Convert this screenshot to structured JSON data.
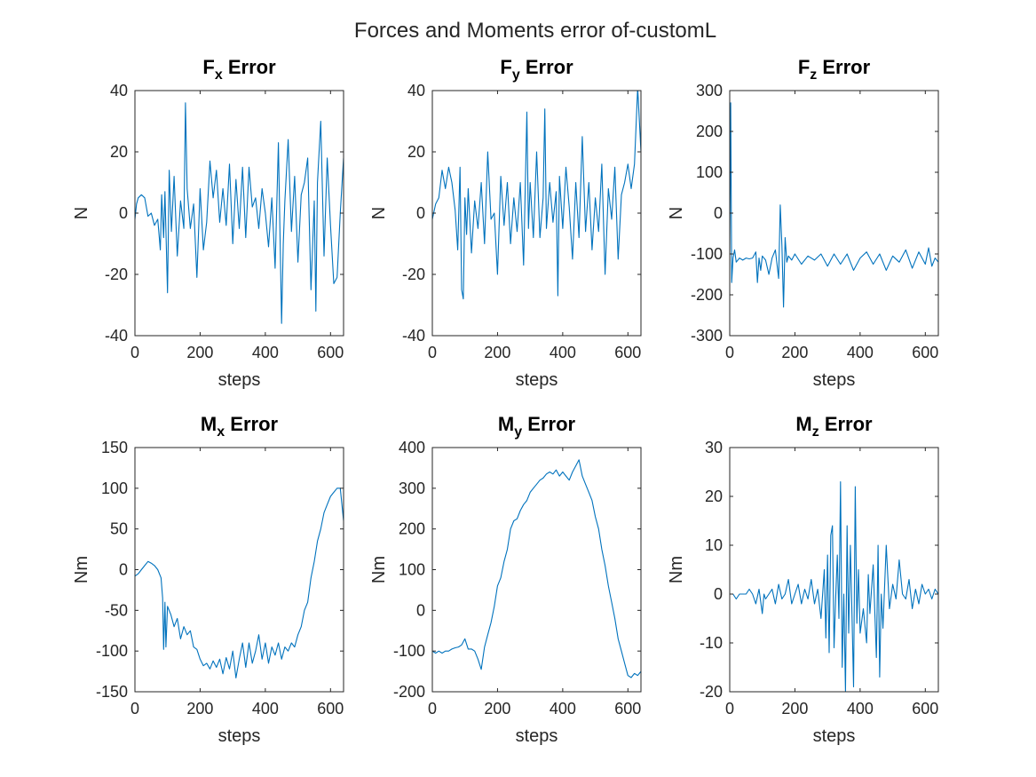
{
  "figure": {
    "title": "Forces and Moments error of-customL"
  },
  "style": {
    "line_color": "#0072BD",
    "axis_color": "#262626",
    "background": "#ffffff"
  },
  "chart_data": [
    {
      "type": "line",
      "title_main": "F",
      "title_sub": "x",
      "title_rest": " Error",
      "xlabel": "steps",
      "ylabel": "N",
      "xlim": [
        0,
        640
      ],
      "ylim": [
        -40,
        40
      ],
      "xticks": [
        0,
        200,
        400,
        600
      ],
      "yticks": [
        -40,
        -20,
        0,
        20,
        40
      ],
      "grid": false,
      "series": [
        {
          "x": [
            0,
            5,
            10,
            20,
            30,
            40,
            50,
            60,
            70,
            78,
            82,
            88,
            92,
            100,
            105,
            112,
            120,
            130,
            140,
            150,
            155,
            160,
            170,
            180,
            190,
            200,
            210,
            220,
            230,
            240,
            250,
            260,
            270,
            280,
            290,
            300,
            310,
            320,
            330,
            340,
            350,
            360,
            370,
            380,
            390,
            400,
            410,
            420,
            430,
            440,
            450,
            455,
            460,
            470,
            480,
            490,
            500,
            510,
            520,
            530,
            540,
            550,
            555,
            560,
            570,
            580,
            590,
            600,
            610,
            620,
            630,
            640
          ],
          "y": [
            -2,
            3,
            5,
            6,
            5,
            -1,
            0,
            -4,
            -2,
            -12,
            6,
            -8,
            7,
            -26,
            14,
            -6,
            12,
            -14,
            4,
            -5,
            36,
            8,
            -5,
            3,
            -21,
            8,
            -12,
            -3,
            17,
            5,
            14,
            -3,
            8,
            -4,
            16,
            -10,
            11,
            -5,
            15,
            -8,
            15,
            2,
            5,
            -5,
            8,
            0,
            -11,
            5,
            -18,
            23,
            -36,
            -10,
            4,
            24,
            -6,
            12,
            -16,
            6,
            10,
            18,
            -25,
            4,
            -32,
            10,
            30,
            -14,
            18,
            -4,
            -23,
            -21,
            0,
            18
          ]
        }
      ]
    },
    {
      "type": "line",
      "title_main": "F",
      "title_sub": "y",
      "title_rest": " Error",
      "xlabel": "steps",
      "ylabel": "N",
      "xlim": [
        0,
        640
      ],
      "ylim": [
        -40,
        40
      ],
      "xticks": [
        0,
        200,
        400,
        600
      ],
      "yticks": [
        -40,
        -20,
        0,
        20,
        40
      ],
      "grid": false,
      "series": [
        {
          "x": [
            0,
            10,
            20,
            30,
            40,
            50,
            60,
            70,
            78,
            85,
            90,
            95,
            100,
            105,
            110,
            120,
            130,
            140,
            150,
            160,
            170,
            180,
            190,
            200,
            210,
            220,
            230,
            240,
            250,
            260,
            270,
            280,
            290,
            295,
            300,
            310,
            320,
            330,
            340,
            345,
            350,
            360,
            370,
            380,
            385,
            390,
            400,
            410,
            420,
            430,
            440,
            450,
            460,
            470,
            480,
            490,
            500,
            510,
            520,
            530,
            540,
            550,
            560,
            570,
            580,
            590,
            600,
            610,
            620,
            630,
            640
          ],
          "y": [
            -2,
            3,
            5,
            14,
            8,
            15,
            10,
            1,
            -12,
            15,
            -25,
            -28,
            5,
            -7,
            8,
            -13,
            4,
            -5,
            10,
            -10,
            20,
            -2,
            0,
            -20,
            12,
            -4,
            10,
            -10,
            5,
            -6,
            10,
            -17,
            33,
            -5,
            10,
            -8,
            20,
            -8,
            5,
            34,
            -5,
            10,
            -3,
            7,
            -27,
            12,
            -5,
            15,
            2,
            -15,
            10,
            -8,
            25,
            -6,
            10,
            -12,
            5,
            -6,
            16,
            -20,
            8,
            -2,
            15,
            -15,
            6,
            10,
            16,
            8,
            16,
            41,
            20
          ]
        }
      ]
    },
    {
      "type": "line",
      "title_main": "F",
      "title_sub": "z",
      "title_rest": " Error",
      "xlabel": "steps",
      "ylabel": "N",
      "xlim": [
        0,
        640
      ],
      "ylim": [
        -300,
        300
      ],
      "xticks": [
        0,
        200,
        400,
        600
      ],
      "yticks": [
        -300,
        -200,
        -100,
        0,
        100,
        200,
        300
      ],
      "grid": false,
      "series": [
        {
          "x": [
            0,
            3,
            6,
            10,
            15,
            20,
            30,
            40,
            50,
            60,
            70,
            80,
            85,
            90,
            95,
            100,
            110,
            120,
            130,
            140,
            150,
            155,
            160,
            165,
            170,
            175,
            180,
            190,
            200,
            220,
            240,
            260,
            280,
            300,
            320,
            340,
            360,
            380,
            400,
            420,
            440,
            460,
            480,
            500,
            520,
            540,
            560,
            580,
            600,
            610,
            620,
            630,
            640
          ],
          "y": [
            -100,
            270,
            -170,
            -110,
            -90,
            -120,
            -110,
            -115,
            -110,
            -112,
            -110,
            -95,
            -170,
            -110,
            -140,
            -105,
            -115,
            -150,
            -110,
            -90,
            -160,
            20,
            -80,
            -230,
            -60,
            -120,
            -105,
            -115,
            -100,
            -125,
            -105,
            -115,
            -100,
            -130,
            -100,
            -125,
            -100,
            -140,
            -110,
            -95,
            -125,
            -100,
            -140,
            -105,
            -120,
            -90,
            -135,
            -95,
            -125,
            -85,
            -130,
            -110,
            -120
          ]
        }
      ]
    },
    {
      "type": "line",
      "title_main": "M",
      "title_sub": "x",
      "title_rest": " Error",
      "xlabel": "steps",
      "ylabel": "Nm",
      "xlim": [
        0,
        640
      ],
      "ylim": [
        -150,
        150
      ],
      "xticks": [
        0,
        200,
        400,
        600
      ],
      "yticks": [
        -150,
        -100,
        -50,
        0,
        50,
        100,
        150
      ],
      "grid": false,
      "series": [
        {
          "x": [
            0,
            10,
            20,
            30,
            40,
            50,
            60,
            70,
            80,
            85,
            88,
            92,
            95,
            100,
            110,
            120,
            130,
            140,
            150,
            160,
            170,
            180,
            190,
            200,
            210,
            220,
            230,
            240,
            250,
            260,
            270,
            280,
            290,
            300,
            310,
            320,
            330,
            340,
            350,
            360,
            370,
            380,
            390,
            400,
            410,
            420,
            430,
            440,
            450,
            460,
            470,
            480,
            490,
            500,
            510,
            520,
            530,
            540,
            550,
            560,
            570,
            580,
            590,
            600,
            610,
            620,
            630,
            640
          ],
          "y": [
            -8,
            -5,
            0,
            5,
            10,
            8,
            5,
            0,
            -10,
            -35,
            -98,
            -40,
            -95,
            -45,
            -55,
            -70,
            -60,
            -85,
            -70,
            -80,
            -75,
            -95,
            -98,
            -110,
            -118,
            -115,
            -122,
            -112,
            -120,
            -110,
            -128,
            -108,
            -122,
            -100,
            -133,
            -110,
            -90,
            -120,
            -90,
            -115,
            -100,
            -80,
            -110,
            -90,
            -115,
            -95,
            -105,
            -90,
            -110,
            -95,
            -100,
            -90,
            -95,
            -80,
            -70,
            -50,
            -40,
            -10,
            10,
            35,
            50,
            70,
            80,
            90,
            95,
            100,
            100,
            60
          ]
        }
      ]
    },
    {
      "type": "line",
      "title_main": "M",
      "title_sub": "y",
      "title_rest": " Error",
      "xlabel": "steps",
      "ylabel": "Nm",
      "xlim": [
        0,
        640
      ],
      "ylim": [
        -200,
        400
      ],
      "xticks": [
        0,
        200,
        400,
        600
      ],
      "yticks": [
        -200,
        -100,
        0,
        100,
        200,
        300,
        400
      ],
      "grid": false,
      "series": [
        {
          "x": [
            0,
            10,
            20,
            30,
            40,
            50,
            60,
            70,
            80,
            90,
            100,
            110,
            120,
            130,
            140,
            150,
            160,
            170,
            180,
            190,
            200,
            210,
            220,
            230,
            240,
            250,
            260,
            270,
            280,
            290,
            300,
            310,
            320,
            330,
            340,
            350,
            360,
            370,
            380,
            390,
            400,
            410,
            420,
            430,
            440,
            450,
            460,
            470,
            480,
            490,
            500,
            510,
            520,
            530,
            540,
            550,
            560,
            570,
            580,
            590,
            600,
            610,
            620,
            630,
            640
          ],
          "y": [
            -100,
            -105,
            -100,
            -105,
            -100,
            -100,
            -95,
            -92,
            -90,
            -85,
            -70,
            -95,
            -95,
            -100,
            -120,
            -145,
            -90,
            -60,
            -30,
            10,
            60,
            80,
            120,
            150,
            200,
            220,
            225,
            245,
            260,
            270,
            290,
            300,
            310,
            320,
            325,
            335,
            340,
            335,
            345,
            330,
            340,
            330,
            320,
            340,
            355,
            370,
            330,
            310,
            290,
            270,
            230,
            200,
            150,
            110,
            60,
            20,
            -20,
            -70,
            -100,
            -130,
            -160,
            -165,
            -155,
            -160,
            -150
          ]
        }
      ]
    },
    {
      "type": "line",
      "title_main": "M",
      "title_sub": "z",
      "title_rest": " Error",
      "xlabel": "steps",
      "ylabel": "Nm",
      "xlim": [
        0,
        640
      ],
      "ylim": [
        -20,
        30
      ],
      "xticks": [
        0,
        200,
        400,
        600
      ],
      "yticks": [
        -20,
        -10,
        0,
        10,
        20,
        30
      ],
      "grid": false,
      "series": [
        {
          "x": [
            0,
            10,
            20,
            30,
            40,
            50,
            60,
            70,
            80,
            90,
            100,
            105,
            110,
            120,
            130,
            140,
            150,
            160,
            170,
            180,
            190,
            200,
            210,
            220,
            230,
            240,
            250,
            260,
            270,
            280,
            290,
            295,
            300,
            305,
            310,
            315,
            320,
            325,
            330,
            335,
            340,
            345,
            350,
            355,
            360,
            365,
            370,
            375,
            380,
            385,
            390,
            395,
            400,
            410,
            420,
            425,
            430,
            440,
            450,
            455,
            460,
            465,
            470,
            480,
            490,
            500,
            510,
            520,
            530,
            540,
            550,
            560,
            570,
            580,
            590,
            600,
            610,
            620,
            630,
            640
          ],
          "y": [
            0,
            0,
            -1,
            0,
            0,
            0,
            1,
            0,
            -2,
            1,
            -4,
            0,
            -1,
            0,
            1,
            -2,
            2,
            -1,
            0,
            3,
            -2,
            0,
            2,
            -2,
            1,
            -1,
            3,
            -2,
            1,
            -5,
            5,
            -9,
            8,
            -12,
            12,
            14,
            -11,
            -1,
            8,
            -5,
            23,
            -15,
            0,
            -20,
            14,
            -8,
            10,
            -4,
            -19,
            22,
            -6,
            5,
            -8,
            -3,
            -10,
            4,
            -4,
            6,
            -13,
            10,
            -17,
            0,
            -7,
            10,
            -3,
            2,
            -1,
            7,
            0,
            -1,
            3,
            -3,
            1,
            -2,
            2,
            0,
            1,
            -1,
            1,
            0
          ]
        }
      ]
    }
  ]
}
